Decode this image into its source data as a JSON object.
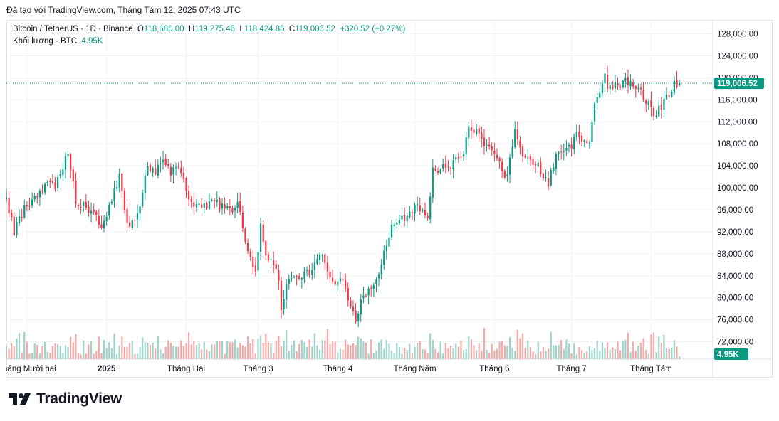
{
  "header": {
    "text": "Đã tạo với TradingView.com, Tháng Tám 12, 2025 07:43 UTC"
  },
  "legend": {
    "symbol": "Bitcoin / TetherUS · 1D · Binance",
    "o_label": "O",
    "o": "118,686.00",
    "h_label": "H",
    "h": "119,275.46",
    "l_label": "L",
    "l": "118,424.86",
    "c_label": "C",
    "c": "119,006.52",
    "change": "+320.52 (+0.27%)",
    "volume_label": "Khối lượng · BTC",
    "volume_value": "4.95K"
  },
  "brand": {
    "name": "TradingView"
  },
  "colors": {
    "up": "#089981",
    "down": "#f23645",
    "up_vol": "#9fd4cb",
    "down_vol": "#f7a9a7",
    "grid": "#f0f3fa",
    "axis_text": "#131722",
    "price_tag": "#089981"
  },
  "chart_data": {
    "type": "candlestick",
    "symbol": "Bitcoin / TetherUS",
    "interval": "1D",
    "exchange": "Binance",
    "last_price": 119006.52,
    "last_price_label": "119,006.52",
    "last_volume_label": "4.95K",
    "y_axis": {
      "ticks": [
        72000,
        76000,
        80000,
        84000,
        88000,
        92000,
        96000,
        100000,
        104000,
        108000,
        112000,
        116000,
        120000,
        124000,
        128000
      ],
      "tick_labels": [
        "72,000.00",
        "76,000.00",
        "80,000.00",
        "84,000.00",
        "88,000.00",
        "92,000.00",
        "96,000.00",
        "100,000.00",
        "104,000.00",
        "108,000.00",
        "112,000.00",
        "116,000.00",
        "120,000.00",
        "124,000.00",
        "128,000.00"
      ],
      "range": [
        70000,
        129500
      ]
    },
    "x_axis": {
      "labels": [
        "Tháng Mười hai",
        "2025",
        "Tháng Hai",
        "Tháng 3",
        "Tháng 4",
        "Tháng Năm",
        "Tháng 6",
        "Tháng 7",
        "Tháng Tám"
      ],
      "label_dates": [
        "2024-12-01",
        "2025-01-01",
        "2025-02-01",
        "2025-03-01",
        "2025-04-01",
        "2025-05-01",
        "2025-06-01",
        "2025-07-01",
        "2025-08-01"
      ],
      "range": [
        "2024-11-23",
        "2025-08-25"
      ]
    },
    "first_date": "2024-11-23",
    "close_keypoints": [
      [
        "2024-11-23",
        97500
      ],
      [
        "2024-11-26",
        92000
      ],
      [
        "2024-11-30",
        96500
      ],
      [
        "2024-12-05",
        98000
      ],
      [
        "2024-12-09",
        101500
      ],
      [
        "2024-12-12",
        100000
      ],
      [
        "2024-12-17",
        107000
      ],
      [
        "2024-12-20",
        97500
      ],
      [
        "2024-12-26",
        95800
      ],
      [
        "2024-12-30",
        92700
      ],
      [
        "2025-01-03",
        98000
      ],
      [
        "2025-01-06",
        102000
      ],
      [
        "2025-01-09",
        93500
      ],
      [
        "2025-01-13",
        94500
      ],
      [
        "2025-01-17",
        104500
      ],
      [
        "2025-01-20",
        102000
      ],
      [
        "2025-01-22",
        105000
      ],
      [
        "2025-01-26",
        103000
      ],
      [
        "2025-01-29",
        104500
      ],
      [
        "2025-02-02",
        97500
      ],
      [
        "2025-02-06",
        96500
      ],
      [
        "2025-02-12",
        97500
      ],
      [
        "2025-02-18",
        95500
      ],
      [
        "2025-02-21",
        98000
      ],
      [
        "2025-02-25",
        88500
      ],
      [
        "2025-02-28",
        84300
      ],
      [
        "2025-03-02",
        94000
      ],
      [
        "2025-03-04",
        87000
      ],
      [
        "2025-03-08",
        86000
      ],
      [
        "2025-03-10",
        78500
      ],
      [
        "2025-03-12",
        82800
      ],
      [
        "2025-03-20",
        84500
      ],
      [
        "2025-03-26",
        87500
      ],
      [
        "2025-03-31",
        82500
      ],
      [
        "2025-04-03",
        83500
      ],
      [
        "2025-04-06",
        78000
      ],
      [
        "2025-04-08",
        76300
      ],
      [
        "2025-04-10",
        79500
      ],
      [
        "2025-04-17",
        84500
      ],
      [
        "2025-04-22",
        93500
      ],
      [
        "2025-04-26",
        94500
      ],
      [
        "2025-05-02",
        96500
      ],
      [
        "2025-05-06",
        94700
      ],
      [
        "2025-05-08",
        103200
      ],
      [
        "2025-05-14",
        103500
      ],
      [
        "2025-05-20",
        106000
      ],
      [
        "2025-05-22",
        111500
      ],
      [
        "2025-05-27",
        108800
      ],
      [
        "2025-06-02",
        105500
      ],
      [
        "2025-06-05",
        101000
      ],
      [
        "2025-06-09",
        110200
      ],
      [
        "2025-06-13",
        105000
      ],
      [
        "2025-06-17",
        104500
      ],
      [
        "2025-06-22",
        101000
      ],
      [
        "2025-06-26",
        107000
      ],
      [
        "2025-06-30",
        107000
      ],
      [
        "2025-07-03",
        109500
      ],
      [
        "2025-07-08",
        108500
      ],
      [
        "2025-07-10",
        116000
      ],
      [
        "2025-07-14",
        120000
      ],
      [
        "2025-07-15",
        117700
      ],
      [
        "2025-07-22",
        119500
      ],
      [
        "2025-07-26",
        118200
      ],
      [
        "2025-07-31",
        115700
      ],
      [
        "2025-08-02",
        113300
      ],
      [
        "2025-08-04",
        114500
      ],
      [
        "2025-08-08",
        116800
      ],
      [
        "2025-08-10",
        119300
      ],
      [
        "2025-08-11",
        118700
      ],
      [
        "2025-08-12",
        119006.52
      ]
    ]
  }
}
